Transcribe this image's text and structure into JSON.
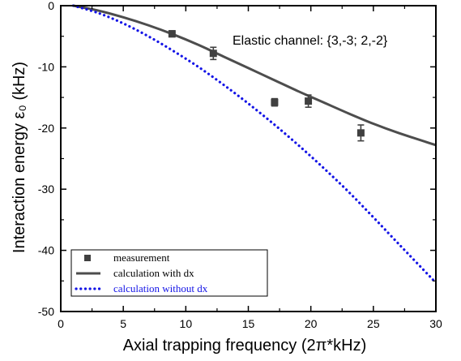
{
  "chart_data": {
    "type": "scatter",
    "xlabel": "Axial trapping frequency (2π*kHz)",
    "ylabel": "Interaction energy ε₀ (kHz)",
    "xlim": [
      0,
      30
    ],
    "ylim": [
      -50,
      0
    ],
    "x_ticks": [
      0,
      5,
      10,
      15,
      20,
      25,
      30
    ],
    "y_ticks": [
      0,
      -10,
      -20,
      -30,
      -40,
      -50
    ],
    "annotation": "Elastic channel: {3,-3; 2,-2}",
    "legend_position": "bottom-left",
    "series": [
      {
        "name": "measurement",
        "kind": "scatter",
        "color": "#404040",
        "points": [
          {
            "x": 8.9,
            "y": -4.6,
            "err": 0.5
          },
          {
            "x": 12.2,
            "y": -7.8,
            "err": 1.0
          },
          {
            "x": 17.1,
            "y": -15.8,
            "err": 0.6
          },
          {
            "x": 19.8,
            "y": -15.6,
            "err": 1.0
          },
          {
            "x": 24.0,
            "y": -20.8,
            "err": 1.3
          }
        ]
      },
      {
        "name": "calculation with dx",
        "kind": "line",
        "color": "#4d4d4d",
        "x": [
          1,
          3,
          5,
          7,
          9,
          11,
          13,
          15,
          17,
          19,
          21,
          23,
          25,
          27,
          30
        ],
        "y": [
          0,
          -0.8,
          -1.9,
          -3.2,
          -4.7,
          -6.4,
          -8.3,
          -10.2,
          -12.1,
          -14.0,
          -15.8,
          -17.6,
          -19.3,
          -20.8,
          -22.8
        ]
      },
      {
        "name": "calculation without dx",
        "kind": "dotted",
        "color": "#1414e6",
        "x": [
          1,
          3,
          5,
          7,
          9,
          11,
          13,
          15,
          17,
          19,
          21,
          23,
          25,
          27,
          30
        ],
        "y": [
          0,
          -1.2,
          -2.9,
          -5.0,
          -7.4,
          -10.0,
          -12.9,
          -16.0,
          -19.3,
          -22.8,
          -26.5,
          -30.4,
          -34.6,
          -38.9,
          -45.3
        ]
      }
    ]
  }
}
